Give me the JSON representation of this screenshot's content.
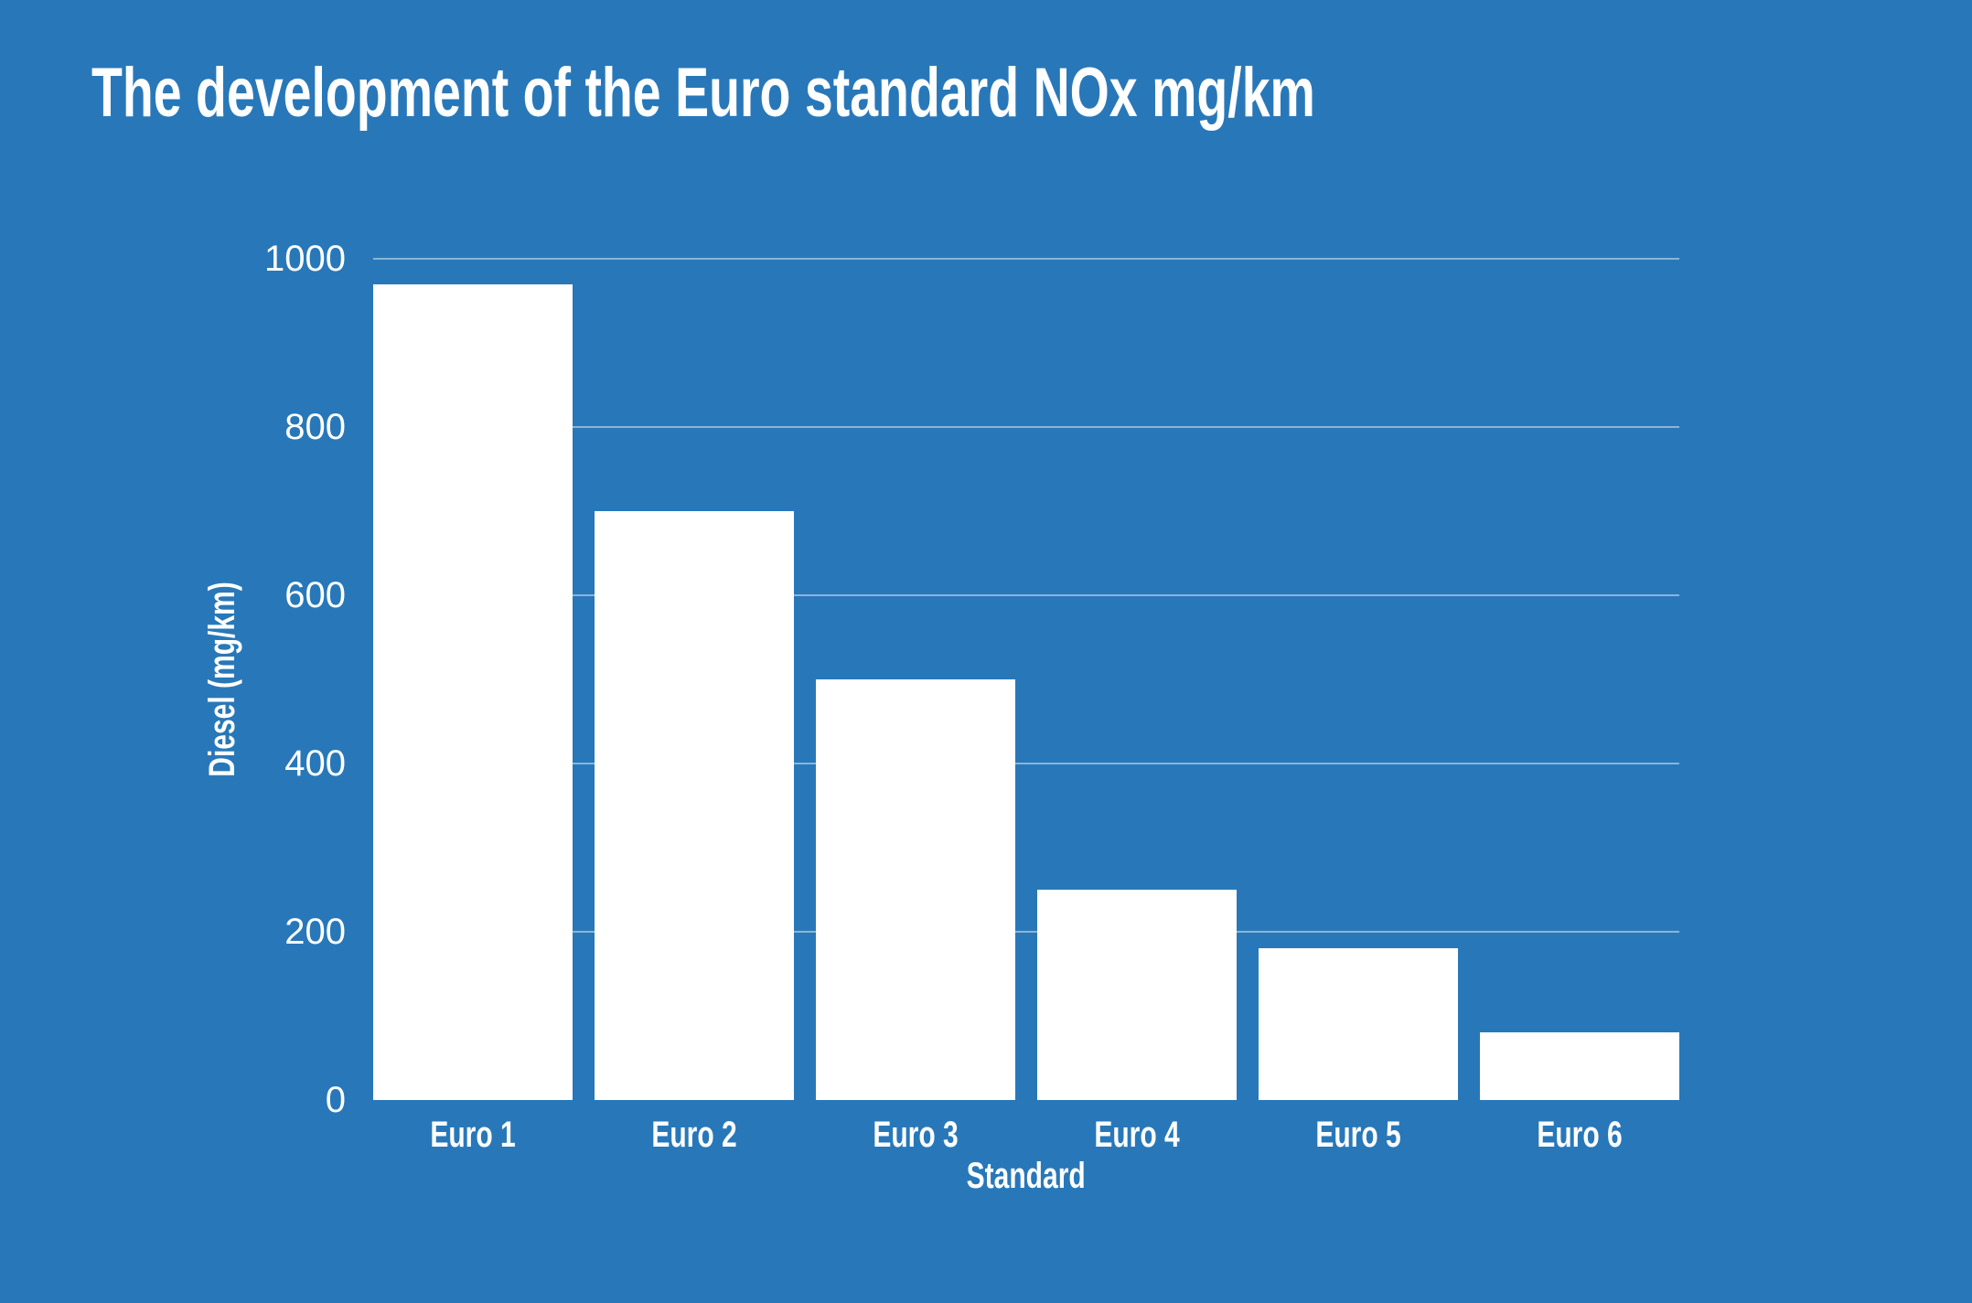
{
  "chart_data": {
    "type": "bar",
    "title": "The development of the Euro standard NOx mg/km",
    "xlabel": "Standard",
    "ylabel": "Diesel (mg/km)",
    "categories": [
      "Euro 1",
      "Euro 2",
      "Euro 3",
      "Euro 4",
      "Euro 5",
      "Euro 6"
    ],
    "values": [
      970,
      700,
      500,
      250,
      180,
      80
    ],
    "ylim": [
      0,
      1000
    ],
    "yticks": [
      0,
      200,
      400,
      600,
      800,
      1000
    ],
    "grid": true,
    "legend": false,
    "colors": {
      "background": "#2878b9",
      "bar": "#ffffff",
      "text": "#ffffff",
      "gridline": "rgba(255,255,255,0.45)"
    }
  }
}
